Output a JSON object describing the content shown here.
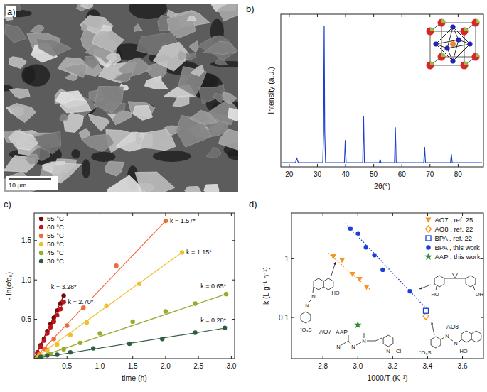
{
  "chart_data": [
    {
      "type": "image",
      "title": "a)",
      "annotations": [
        "10 µm"
      ]
    },
    {
      "type": "line",
      "title": "b)",
      "x_label": "2θ(°)",
      "y_label": "Intensity (a.u.)",
      "color": "#1f3fd1",
      "x": [
        17.5,
        22.2,
        22.7,
        23.2,
        31.9,
        32.2,
        32.4,
        32.6,
        32.9,
        39.6,
        39.9,
        40.2,
        46.1,
        46.4,
        46.7,
        52.0,
        52.3,
        52.6,
        57.4,
        57.7,
        58.0,
        67.8,
        68.1,
        68.4,
        77.3,
        77.6,
        77.9,
        88.5
      ],
      "values": [
        0.03,
        0.03,
        0.06,
        0.03,
        0.03,
        0.25,
        1.0,
        0.25,
        0.03,
        0.03,
        0.19,
        0.03,
        0.03,
        0.36,
        0.03,
        0.03,
        0.05,
        0.03,
        0.03,
        0.28,
        0.03,
        0.03,
        0.14,
        0.03,
        0.03,
        0.09,
        0.03,
        0.03
      ],
      "xlim": [
        17,
        89
      ],
      "xticks": [
        20,
        30,
        40,
        50,
        60,
        70,
        80
      ],
      "ylim": [
        0,
        1.08
      ],
      "tick_labels": "x"
    },
    {
      "type": "scatter",
      "title": "c)",
      "x_label": "time (h)",
      "y_label": "- ln(c/c₀)",
      "legend": "top-left",
      "xlim": [
        0,
        3.05
      ],
      "xticks": [
        0.5,
        {
          "value": 1,
          "label": "1.0"
        },
        1.5,
        {
          "value": 2,
          "label": "2.0"
        },
        2.5,
        {
          "value": 3,
          "label": "3.0"
        }
      ],
      "ylim": [
        0,
        1.85
      ],
      "yticks": [
        0.5,
        {
          "value": 1,
          "label": "1.0"
        },
        1.5
      ],
      "series": [
        {
          "name": "65 °C",
          "color": "#7a0a0a",
          "marker": "circle",
          "line_style": "solid",
          "label": "k = 3.28*",
          "x": [
            0.05,
            0.1,
            0.15,
            0.2,
            0.25,
            0.3,
            0.35,
            0.4,
            0.45
          ],
          "values": [
            0.08,
            0.17,
            0.25,
            0.35,
            0.44,
            0.52,
            0.61,
            0.7,
            0.8
          ],
          "fit_x": [
            0,
            0.45
          ],
          "fit_y": [
            0,
            0.8
          ]
        },
        {
          "name": "60 °C",
          "color": "#c0141c",
          "marker": "circle",
          "line_style": "solid",
          "label": "k = 2.70*",
          "x": [
            0.05,
            0.1,
            0.15,
            0.2,
            0.25,
            0.3,
            0.35,
            0.4,
            0.45
          ],
          "values": [
            0.07,
            0.15,
            0.23,
            0.32,
            0.4,
            0.47,
            0.55,
            0.63,
            0.72
          ],
          "fit_x": [
            0,
            0.45
          ],
          "fit_y": [
            0,
            0.72
          ]
        },
        {
          "name": "55 °C",
          "color": "#f06a3a",
          "marker": "circle",
          "line_style": "solid",
          "label": "k = 1.57*",
          "x": [
            0.08,
            0.17,
            0.3,
            0.5,
            0.75,
            1.25,
            2.0
          ],
          "values": [
            0.06,
            0.12,
            0.25,
            0.42,
            0.65,
            1.18,
            1.75
          ],
          "fit_x": [
            0,
            2.0
          ],
          "fit_y": [
            0,
            1.75
          ]
        },
        {
          "name": "50 °C",
          "color": "#efc02e",
          "marker": "circle",
          "line_style": "solid",
          "label": "k = 1.15*",
          "x": [
            0.08,
            0.2,
            0.35,
            0.55,
            0.8,
            1.1,
            1.6,
            2.25
          ],
          "values": [
            0.04,
            0.1,
            0.18,
            0.3,
            0.46,
            0.67,
            0.95,
            1.35
          ],
          "fit_x": [
            0,
            2.25
          ],
          "fit_y": [
            0,
            1.35
          ]
        },
        {
          "name": "45 °C",
          "color": "#9aaa2c",
          "marker": "circle",
          "line_style": "solid",
          "label": "k = 0.65*",
          "x": [
            0.1,
            0.25,
            0.45,
            0.7,
            1.0,
            1.5,
            2.0,
            2.45,
            2.92
          ],
          "values": [
            0.03,
            0.06,
            0.12,
            0.2,
            0.32,
            0.47,
            0.6,
            0.7,
            0.82
          ],
          "fit_x": [
            0,
            2.92
          ],
          "fit_y": [
            0,
            0.82
          ]
        },
        {
          "name": "30 °C",
          "color": "#2f5d40",
          "marker": "circle",
          "line_style": "solid",
          "label": "k = 0.28*",
          "x": [
            0.1,
            0.2,
            0.35,
            0.55,
            0.9,
            1.45,
            1.95,
            2.45,
            2.9
          ],
          "values": [
            0.02,
            0.04,
            0.05,
            0.08,
            0.13,
            0.19,
            0.25,
            0.33,
            0.39
          ],
          "fit_x": [
            0,
            2.92
          ],
          "fit_y": [
            0,
            0.39
          ]
        }
      ]
    },
    {
      "type": "scatter",
      "title": "d)",
      "x_label": "1000/T (K⁻¹)",
      "y_label": "k (L g⁻¹ h⁻¹)",
      "log": "y",
      "legend": "top-right",
      "xlim": [
        2.62,
        3.72
      ],
      "xticks": [
        2.8,
        {
          "value": 3,
          "label": "3.0"
        },
        3.2,
        3.4,
        3.6
      ],
      "ylim": [
        0.02,
        6
      ],
      "yticks": [
        0.1,
        1
      ],
      "series": [
        {
          "name": "AO7 , ref. 25",
          "color": "#f7931e",
          "marker": "triangle-down",
          "line_style": "dotted",
          "x": [
            2.86,
            2.91,
            2.97,
            3.01,
            3.05
          ],
          "values": [
            1.1,
            0.95,
            0.55,
            0.45,
            0.33
          ],
          "fit_x": [
            2.83,
            3.07
          ],
          "fit_y": [
            1.25,
            0.3
          ]
        },
        {
          "name": "AO8 , ref. 22",
          "color": "#f7931e",
          "marker": "diamond-open",
          "x": [
            3.39
          ],
          "values": [
            0.105
          ]
        },
        {
          "name": "BPA , ref. 22",
          "color": "#1a3fd6",
          "marker": "square-open",
          "x": [
            3.39
          ],
          "values": [
            0.13
          ]
        },
        {
          "name": "BPA , this work",
          "color": "#1a3fd6",
          "marker": "circle",
          "line_style": "dotted",
          "x": [
            2.957,
            3.002,
            3.047,
            3.095,
            3.143,
            3.299
          ],
          "values": [
            3.28,
            2.7,
            1.57,
            1.15,
            0.65,
            0.28
          ],
          "fit_x": [
            2.93,
            3.4
          ],
          "fit_y": [
            4.0,
            0.135
          ]
        },
        {
          "name": "AAP , this work",
          "color": "#2e8b3a",
          "marker": "star",
          "x": [
            3.0
          ],
          "values": [
            0.075
          ]
        }
      ],
      "structures": [
        {
          "label": "AO7",
          "atoms": [
            "⁻O₃S",
            "N",
            "N",
            "HO"
          ]
        },
        {
          "label": "AAP",
          "atoms": [
            "N",
            "N",
            "N",
            "N",
            "Cl"
          ]
        },
        {
          "atoms": [
            "HO",
            "OH"
          ]
        },
        {
          "label": "AO8",
          "atoms": [
            "⁻O₃S",
            "N",
            "N",
            "HO"
          ]
        }
      ]
    }
  ]
}
